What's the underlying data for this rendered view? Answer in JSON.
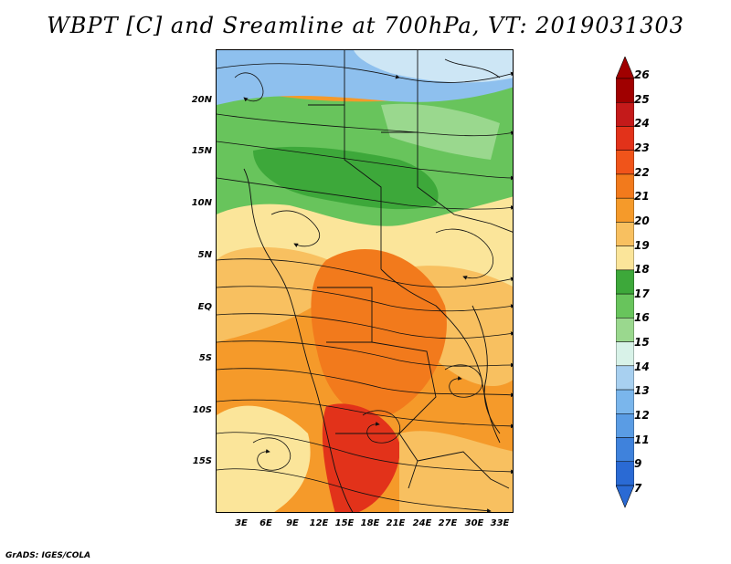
{
  "title": "WBPT [C] and Sreamline at 700hPa, VT: 2019031303",
  "footer": "GrADS: IGES/COLA",
  "lat_labels": [
    "20N",
    "15N",
    "10N",
    "5N",
    "EQ",
    "5S",
    "10S",
    "15S"
  ],
  "lon_labels": [
    "3E",
    "6E",
    "9E",
    "12E",
    "15E",
    "18E",
    "21E",
    "24E",
    "27E",
    "30E",
    "33E"
  ],
  "colorbar": {
    "labels": [
      "26",
      "25",
      "24",
      "23",
      "22",
      "21",
      "20",
      "19",
      "18",
      "17",
      "16",
      "15",
      "14",
      "13",
      "12",
      "11",
      "9",
      "7"
    ],
    "colors": [
      "#a00000",
      "#c41a1a",
      "#e2321a",
      "#f0541a",
      "#f27a1c",
      "#f59a2a",
      "#f8c060",
      "#fbe59a",
      "#3da83a",
      "#68c45c",
      "#9ad88e",
      "#d8f2e8",
      "#a8d0f0",
      "#7ab6ec",
      "#5a9ce4",
      "#3f82dc",
      "#2a6ad4"
    ],
    "arrow_top_color": "#a00000",
    "arrow_bottom_color": "#2a6ad4"
  },
  "colors": {
    "blue": "#8ec0ee",
    "light_blue": "#cde6f5",
    "green": "#3da83a",
    "mid_green": "#68c45c",
    "light_green": "#9ad88e",
    "yellow": "#fbe59a",
    "light_orange": "#f8c060",
    "orange": "#f59a2a",
    "deep_orange": "#f27a1c",
    "red_orange": "#e2321a"
  }
}
